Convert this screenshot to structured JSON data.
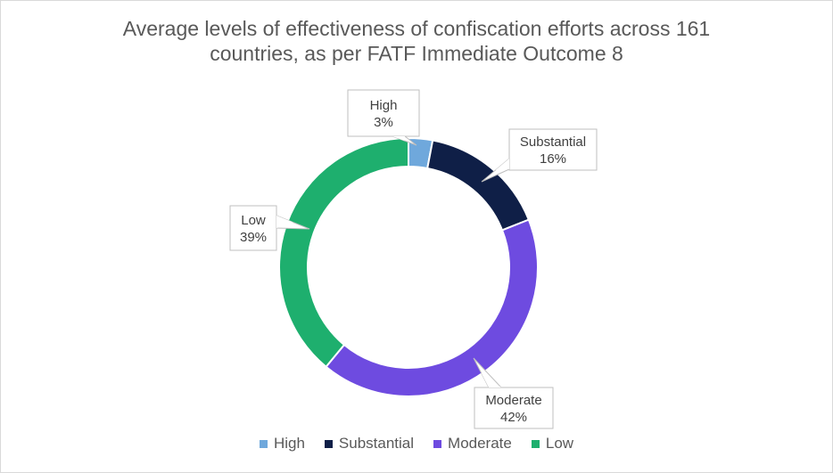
{
  "chart_data": {
    "type": "pie",
    "variant": "donut",
    "title_lines": [
      "Average levels of effectiveness of confiscation efforts across 161",
      "countries,  as per FATF Immediate Outcome 8"
    ],
    "slices": [
      {
        "label": "High",
        "value": 3,
        "value_text": "3%",
        "color": "#6fa8dc"
      },
      {
        "label": "Substantial",
        "value": 16,
        "value_text": "16%",
        "color": "#0f1f47"
      },
      {
        "label": "Moderate",
        "value": 42,
        "value_text": "42%",
        "color": "#6e4be0"
      },
      {
        "label": "Low",
        "value": 39,
        "value_text": "39%",
        "color": "#1eaf6e"
      }
    ],
    "legend_position": "bottom"
  }
}
